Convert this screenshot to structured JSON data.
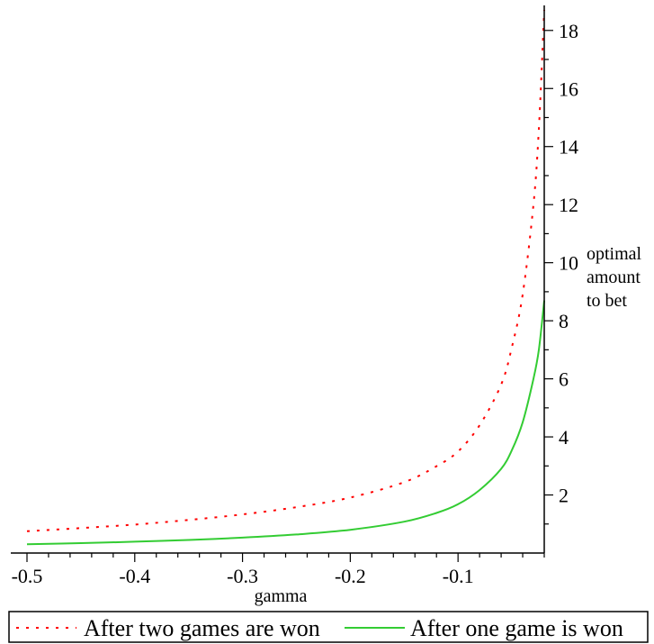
{
  "chart_data": {
    "type": "line",
    "xlabel": "gamma",
    "ylabel": [
      "optimal",
      "amount",
      "to bet"
    ],
    "xlim": [
      -0.5,
      -0.02
    ],
    "ylim": [
      0.0,
      18.8
    ],
    "x_ticks": [
      -0.5,
      -0.4,
      -0.3,
      -0.2,
      -0.1
    ],
    "x_tick_labels": [
      "-0.5",
      "-0.4",
      "-0.3",
      "-0.2",
      "-0.1"
    ],
    "y_ticks": [
      2,
      4,
      6,
      8,
      10,
      12,
      14,
      16,
      18
    ],
    "y_tick_labels": [
      "2",
      "4",
      "6",
      "8",
      "10",
      "12",
      "14",
      "16",
      "18"
    ],
    "legend_position": "bottom",
    "series": [
      {
        "name": "After two games are won",
        "color": "#ff0000",
        "style": "dotted",
        "x": [
          -0.5,
          -0.45,
          -0.4,
          -0.35,
          -0.3,
          -0.25,
          -0.2,
          -0.15,
          -0.12,
          -0.1,
          -0.08,
          -0.06,
          -0.05,
          -0.04,
          -0.03,
          -0.025,
          -0.02
        ],
        "y": [
          0.75,
          0.86,
          0.98,
          1.14,
          1.33,
          1.58,
          1.91,
          2.44,
          2.99,
          3.5,
          4.4,
          5.8,
          7.1,
          8.9,
          12.0,
          14.6,
          18.7
        ]
      },
      {
        "name": "After one game is won",
        "color": "#33cc33",
        "style": "solid",
        "x": [
          -0.5,
          -0.45,
          -0.4,
          -0.35,
          -0.3,
          -0.25,
          -0.2,
          -0.15,
          -0.12,
          -0.1,
          -0.08,
          -0.06,
          -0.05,
          -0.04,
          -0.03,
          -0.025,
          -0.02
        ],
        "y": [
          0.3,
          0.34,
          0.39,
          0.45,
          0.53,
          0.64,
          0.8,
          1.08,
          1.38,
          1.68,
          2.17,
          2.9,
          3.55,
          4.5,
          6.0,
          7.0,
          8.7
        ]
      }
    ]
  }
}
